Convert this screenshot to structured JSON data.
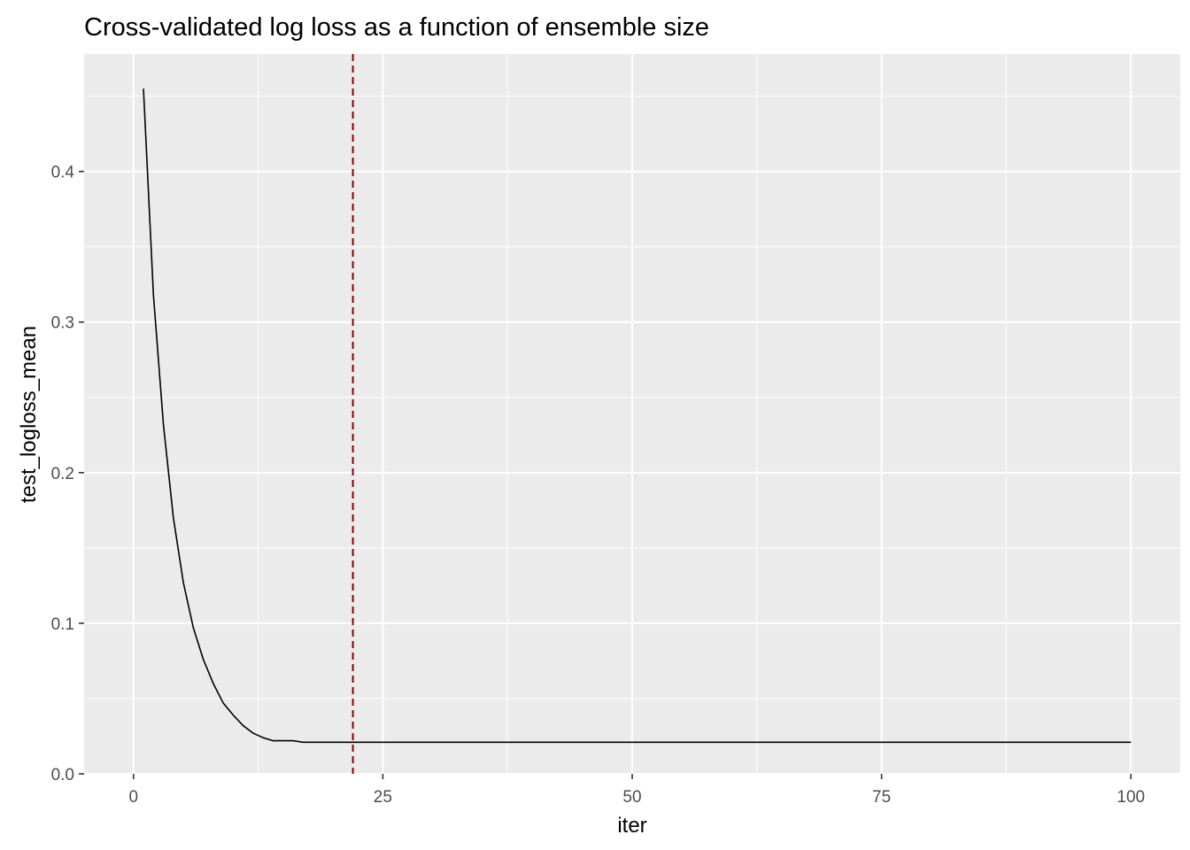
{
  "chart_data": {
    "type": "line",
    "title": "Cross-validated log loss as a function of ensemble size",
    "xlabel": "iter",
    "ylabel": "test_logloss_mean",
    "xlim": [
      -4.95,
      104.95
    ],
    "ylim": [
      0,
      0.478
    ],
    "x_ticks": [
      0,
      25,
      50,
      75,
      100
    ],
    "x_tick_labels": [
      "0",
      "25",
      "50",
      "75",
      "100"
    ],
    "y_ticks": [
      0.0,
      0.1,
      0.2,
      0.3,
      0.4
    ],
    "y_tick_labels": [
      "0.0",
      "0.1",
      "0.2",
      "0.3",
      "0.4"
    ],
    "grid": true,
    "background_color": "#EBEBEB",
    "grid_color": "#FFFFFF",
    "line_color": "#000000",
    "series": [
      {
        "x": [
          1,
          2,
          3,
          4,
          5,
          6,
          7,
          8,
          9,
          10,
          11,
          12,
          13,
          14,
          15,
          16,
          17,
          18,
          19,
          20,
          21,
          22,
          23,
          24,
          25,
          26,
          27,
          28,
          29,
          30,
          31,
          32,
          33,
          34,
          35,
          36,
          37,
          38,
          39,
          40,
          41,
          42,
          43,
          44,
          45,
          46,
          47,
          48,
          49,
          50,
          51,
          52,
          53,
          54,
          55,
          56,
          57,
          58,
          59,
          60,
          61,
          62,
          63,
          64,
          65,
          66,
          67,
          68,
          69,
          70,
          71,
          72,
          73,
          74,
          75,
          76,
          77,
          78,
          79,
          80,
          81,
          82,
          83,
          84,
          85,
          86,
          87,
          88,
          89,
          90,
          91,
          92,
          93,
          94,
          95,
          96,
          97,
          98,
          99,
          100
        ],
        "values": [
          0.455,
          0.318,
          0.232,
          0.17,
          0.127,
          0.097,
          0.076,
          0.06,
          0.047,
          0.039,
          0.032,
          0.027,
          0.024,
          0.022,
          0.022,
          0.022,
          0.021,
          0.021,
          0.021,
          0.021,
          0.021,
          0.021,
          0.021,
          0.021,
          0.021,
          0.021,
          0.021,
          0.021,
          0.021,
          0.021,
          0.021,
          0.021,
          0.021,
          0.021,
          0.021,
          0.021,
          0.021,
          0.021,
          0.021,
          0.021,
          0.021,
          0.021,
          0.021,
          0.021,
          0.021,
          0.021,
          0.021,
          0.021,
          0.021,
          0.021,
          0.021,
          0.021,
          0.021,
          0.021,
          0.021,
          0.021,
          0.021,
          0.021,
          0.021,
          0.021,
          0.021,
          0.021,
          0.021,
          0.021,
          0.021,
          0.021,
          0.021,
          0.021,
          0.021,
          0.021,
          0.021,
          0.021,
          0.021,
          0.021,
          0.021,
          0.021,
          0.021,
          0.021,
          0.021,
          0.021,
          0.021,
          0.021,
          0.021,
          0.021,
          0.021,
          0.021,
          0.021,
          0.021,
          0.021,
          0.021,
          0.021,
          0.021,
          0.021,
          0.021,
          0.021,
          0.021,
          0.021,
          0.021,
          0.021,
          0.021
        ]
      }
    ],
    "vline": {
      "x": 22,
      "color": "#8B0000",
      "style": "dashed"
    }
  }
}
